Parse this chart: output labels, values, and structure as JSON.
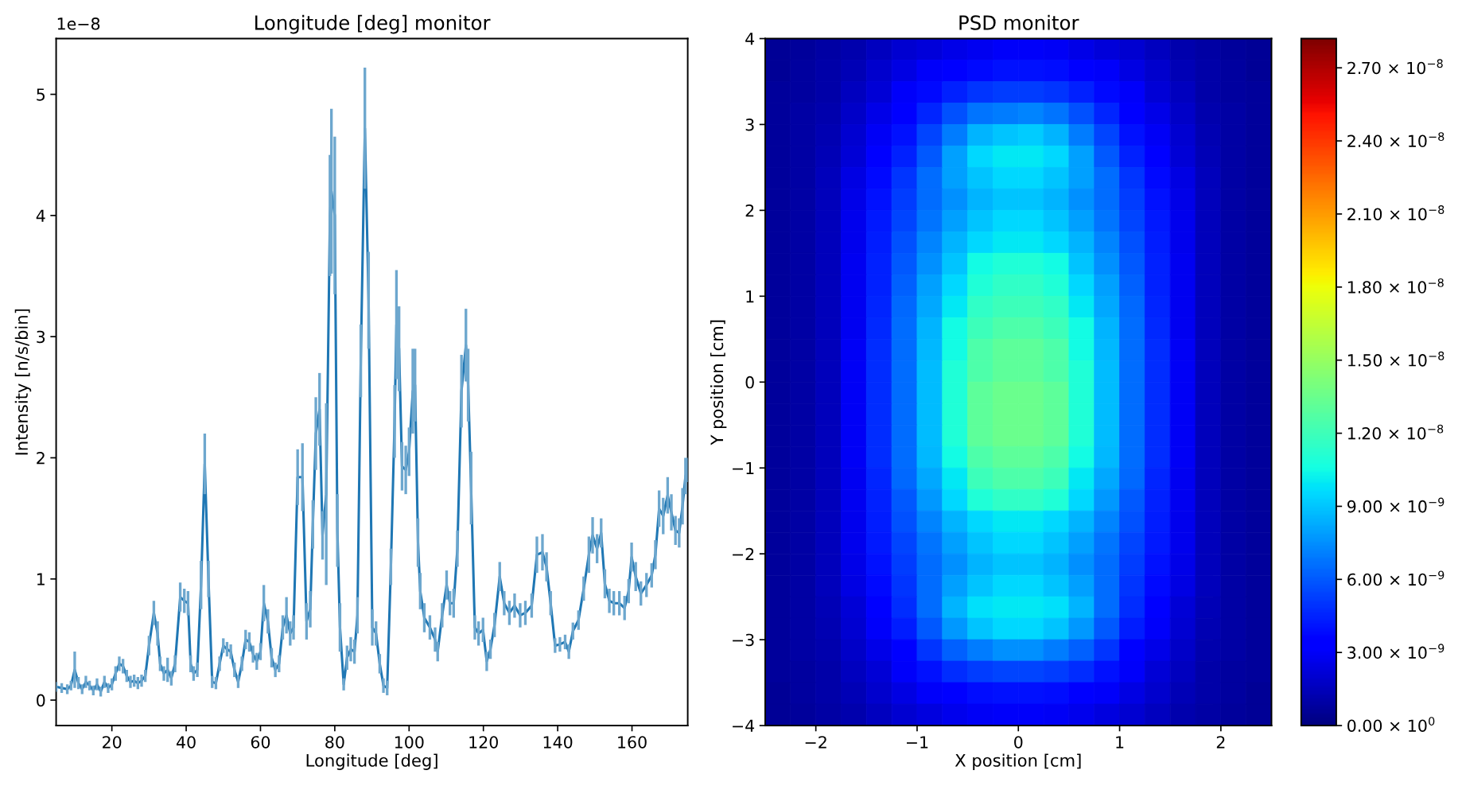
{
  "chart_data": [
    {
      "type": "line",
      "title": "Longitude [deg] monitor",
      "xlabel": "Longitude [deg]",
      "ylabel": "Intensity [n/s/bin]",
      "annotations": [
        "1e−8"
      ],
      "x": [
        5,
        6.5,
        8,
        9,
        10,
        11,
        12,
        13,
        14,
        15,
        16,
        17,
        18,
        19,
        20,
        21,
        22,
        23,
        24,
        25,
        26,
        27,
        28,
        29,
        30,
        31.3,
        32.3,
        33,
        34,
        35,
        36,
        37,
        38.4,
        39.5,
        40.5,
        41.2,
        42,
        43,
        44,
        45,
        46,
        47,
        48,
        49,
        50,
        51,
        52,
        53,
        54,
        55,
        56,
        57,
        58,
        59,
        60,
        60.9,
        62,
        63,
        64,
        65,
        66,
        67,
        68,
        68.9,
        70,
        71.3,
        72.4,
        73.4,
        74.1,
        74.9,
        75.9,
        76.7,
        77.7,
        78.7,
        79.1,
        80,
        80.7,
        81.4,
        82.4,
        83.3,
        84.3,
        85.3,
        86.1,
        87,
        88.1,
        89.1,
        90.1,
        91.1,
        92.1,
        93.1,
        94.1,
        95.1,
        96.1,
        96.6,
        97.3,
        98.1,
        99.1,
        100,
        101,
        101.6,
        102.4,
        103,
        104.1,
        105.6,
        107,
        107.7,
        108.9,
        110.1,
        111,
        112,
        113,
        114.1,
        115.3,
        115.9,
        116.7,
        117.7,
        118.7,
        119.9,
        120.9,
        121.9,
        123,
        124.4,
        125.6,
        127,
        128.4,
        129.9,
        131.3,
        133,
        134.4,
        135.9,
        137,
        138.1,
        139.3,
        140.6,
        142,
        143,
        144.1,
        145.6,
        147,
        148.4,
        149.4,
        150.6,
        151.7,
        152.7,
        153.9,
        155.1,
        156.6,
        158,
        159.1,
        159.9,
        161,
        162.4,
        163.9,
        165.3,
        166.3,
        167.3,
        168.4,
        169.6,
        170.6,
        171.7,
        172.7,
        173.6,
        174.4,
        175
      ],
      "series": [
        {
          "color": "#1f77b4",
          "values": [
            0.11,
            0.1,
            0.09,
            0.12,
            0.25,
            0.14,
            0.09,
            0.15,
            0.12,
            0.08,
            0.13,
            0.07,
            0.15,
            0.1,
            0.13,
            0.22,
            0.3,
            0.28,
            0.2,
            0.15,
            0.16,
            0.14,
            0.16,
            0.2,
            0.45,
            0.72,
            0.55,
            0.3,
            0.22,
            0.25,
            0.18,
            0.3,
            0.85,
            0.82,
            0.8,
            0.3,
            0.22,
            0.25,
            0.95,
            1.95,
            1.0,
            0.15,
            0.14,
            0.3,
            0.45,
            0.42,
            0.4,
            0.25,
            0.15,
            0.3,
            0.5,
            0.48,
            0.38,
            0.32,
            0.4,
            0.8,
            0.65,
            0.35,
            0.25,
            0.3,
            0.6,
            0.7,
            0.55,
            0.6,
            1.84,
            1.84,
            0.65,
            0.75,
            1.45,
            2.2,
            2.4,
            1.36,
            1.7,
            4.0,
            4.2,
            4.0,
            1.4,
            0.6,
            0.13,
            0.35,
            0.42,
            0.4,
            0.7,
            2.8,
            4.72,
            3.3,
            0.6,
            0.55,
            0.3,
            0.12,
            0.1,
            1.1,
            2.3,
            3.1,
            2.9,
            1.93,
            1.9,
            2.05,
            2.55,
            2.6,
            1.3,
            0.9,
            0.68,
            0.6,
            0.5,
            0.4,
            0.7,
            0.95,
            0.8,
            0.8,
            1.25,
            2.55,
            2.93,
            2.6,
            1.75,
            0.6,
            0.55,
            0.58,
            0.32,
            0.42,
            0.62,
            1.02,
            0.8,
            0.72,
            0.78,
            0.7,
            0.72,
            0.78,
            1.2,
            1.22,
            1.1,
            0.8,
            0.45,
            0.46,
            0.48,
            0.4,
            0.57,
            0.66,
            0.92,
            1.2,
            1.36,
            1.25,
            1.38,
            0.96,
            0.82,
            0.8,
            0.8,
            0.76,
            0.9,
            1.18,
            1.02,
            0.88,
            0.95,
            1.03,
            1.2,
            1.58,
            1.52,
            1.69,
            1.55,
            1.4,
            1.38,
            1.6,
            1.85,
            1.9
          ],
          "errors": [
            0.04,
            0.04,
            0.04,
            0.04,
            0.15,
            0.05,
            0.04,
            0.05,
            0.04,
            0.04,
            0.05,
            0.04,
            0.05,
            0.04,
            0.05,
            0.06,
            0.06,
            0.06,
            0.05,
            0.05,
            0.05,
            0.05,
            0.05,
            0.05,
            0.08,
            0.1,
            0.1,
            0.06,
            0.06,
            0.1,
            0.06,
            0.07,
            0.12,
            0.1,
            0.1,
            0.07,
            0.06,
            0.06,
            0.2,
            0.25,
            0.15,
            0.05,
            0.05,
            0.06,
            0.06,
            0.06,
            0.06,
            0.06,
            0.05,
            0.06,
            0.08,
            0.08,
            0.07,
            0.07,
            0.07,
            0.15,
            0.1,
            0.08,
            0.06,
            0.07,
            0.1,
            0.15,
            0.1,
            0.1,
            0.23,
            0.28,
            0.15,
            0.15,
            0.2,
            0.3,
            0.3,
            0.2,
            0.75,
            0.5,
            0.68,
            0.65,
            0.3,
            0.2,
            0.05,
            0.1,
            0.1,
            0.1,
            0.15,
            0.3,
            0.5,
            0.4,
            0.15,
            0.1,
            0.08,
            0.06,
            0.06,
            0.15,
            0.3,
            0.45,
            0.35,
            0.2,
            0.2,
            0.2,
            0.35,
            0.3,
            0.2,
            0.15,
            0.12,
            0.1,
            0.1,
            0.08,
            0.1,
            0.12,
            0.1,
            0.12,
            0.15,
            0.3,
            0.3,
            0.3,
            0.3,
            0.1,
            0.1,
            0.1,
            0.08,
            0.08,
            0.1,
            0.12,
            0.1,
            0.1,
            0.1,
            0.1,
            0.1,
            0.1,
            0.15,
            0.15,
            0.12,
            0.1,
            0.06,
            0.06,
            0.06,
            0.06,
            0.07,
            0.08,
            0.1,
            0.15,
            0.15,
            0.12,
            0.12,
            0.12,
            0.1,
            0.1,
            0.1,
            0.1,
            0.1,
            0.12,
            0.12,
            0.1,
            0.1,
            0.1,
            0.12,
            0.15,
            0.15,
            0.15,
            0.15,
            0.12,
            0.12,
            0.15,
            0.15,
            0.1
          ]
        }
      ],
      "xlim": [
        5,
        175
      ],
      "xticks": [
        20,
        40,
        60,
        80,
        100,
        120,
        140,
        160
      ],
      "ylim": [
        -0.21,
        5.46
      ],
      "yticks": [
        0,
        1,
        2,
        3,
        4,
        5
      ]
    },
    {
      "type": "heatmap",
      "title": "PSD monitor",
      "xlabel": "X position [cm]",
      "ylabel": "Y position [cm]",
      "x": [
        -2.375,
        -2.125,
        -1.875,
        -1.625,
        -1.375,
        -1.125,
        -0.875,
        -0.625,
        -0.375,
        -0.125,
        0.125,
        0.375,
        0.625,
        0.875,
        1.125,
        1.375,
        1.625,
        1.875,
        2.125,
        2.375
      ],
      "y": [
        3.875,
        3.625,
        3.375,
        3.125,
        2.875,
        2.625,
        2.375,
        2.125,
        1.875,
        1.625,
        1.375,
        1.125,
        0.875,
        0.625,
        0.375,
        0.125,
        -0.125,
        -0.375,
        -0.625,
        -0.875,
        -1.125,
        -1.375,
        -1.625,
        -1.875,
        -2.125,
        -2.375,
        -2.625,
        -2.875,
        -3.125,
        -3.375,
        -3.625,
        -3.875
      ],
      "cells": [
        [
          6e-10,
          7e-10,
          9e-10,
          1.2e-09,
          1.6e-09,
          2e-09,
          2.3e-09,
          2.6e-09,
          2.8e-09,
          3e-09,
          3e-09,
          2.9e-09,
          2.6e-09,
          2.3e-09,
          2e-09,
          1.6e-09,
          1.2e-09,
          9e-10,
          7e-10,
          6e-10
        ],
        [
          6e-10,
          8e-10,
          1e-09,
          1.4e-09,
          1.9e-09,
          2.5e-09,
          3e-09,
          3.5e-09,
          3.8e-09,
          4e-09,
          4e-09,
          3.9e-09,
          3.5e-09,
          3e-09,
          2.5e-09,
          1.9e-09,
          1.4e-09,
          1e-09,
          8e-10,
          6e-10
        ],
        [
          7e-10,
          8e-10,
          1.1e-09,
          1.6e-09,
          2.2e-09,
          3e-09,
          3.8e-09,
          4.5e-09,
          5e-09,
          5.2e-09,
          5.2e-09,
          5e-09,
          4.5e-09,
          3.8e-09,
          3e-09,
          2.2e-09,
          1.6e-09,
          1.1e-09,
          8e-10,
          7e-10
        ],
        [
          7e-10,
          9e-10,
          1.2e-09,
          1.8e-09,
          2.6e-09,
          3.5e-09,
          4.6e-09,
          5.8e-09,
          6.8e-09,
          7e-09,
          7.2e-09,
          6.8e-09,
          5.8e-09,
          4.6e-09,
          3.5e-09,
          2.6e-09,
          1.8e-09,
          1.2e-09,
          9e-10,
          7e-10
        ],
        [
          7e-10,
          9e-10,
          1.3e-09,
          2e-09,
          2.9e-09,
          4e-09,
          5.5e-09,
          7e-09,
          8.5e-09,
          9e-09,
          9.2e-09,
          8.5e-09,
          7e-09,
          5.5e-09,
          4e-09,
          2.9e-09,
          2e-09,
          1.3e-09,
          9e-10,
          7e-10
        ],
        [
          7e-10,
          9e-10,
          1.4e-09,
          2.2e-09,
          3.2e-09,
          4.5e-09,
          6e-09,
          8e-09,
          9.5e-09,
          1e-08,
          1e-08,
          9.5e-09,
          8e-09,
          6e-09,
          4.5e-09,
          3.2e-09,
          2.2e-09,
          1.4e-09,
          9e-10,
          7e-10
        ],
        [
          7e-10,
          9e-10,
          1.5e-09,
          2.5e-09,
          3.8e-09,
          5e-09,
          6.5e-09,
          8e-09,
          9e-09,
          9.5e-09,
          9.5e-09,
          9e-09,
          8e-09,
          6.5e-09,
          5e-09,
          3.8e-09,
          2.5e-09,
          1.5e-09,
          9e-10,
          7e-10
        ],
        [
          7e-10,
          9e-10,
          1.5e-09,
          2.6e-09,
          4e-09,
          5.2e-09,
          6.5e-09,
          7.5e-09,
          8.5e-09,
          9e-09,
          9e-09,
          8.5e-09,
          7.5e-09,
          6.5e-09,
          5.2e-09,
          4e-09,
          2.6e-09,
          1.5e-09,
          9e-10,
          7e-10
        ],
        [
          7e-10,
          9e-10,
          1.5e-09,
          2.7e-09,
          4.2e-09,
          5.5e-09,
          6.8e-09,
          8e-09,
          9e-09,
          9.5e-09,
          9.5e-09,
          9e-09,
          8e-09,
          6.8e-09,
          5.5e-09,
          4.2e-09,
          2.7e-09,
          1.5e-09,
          9e-10,
          7e-10
        ],
        [
          7e-10,
          9e-10,
          1.5e-09,
          2.7e-09,
          4.3e-09,
          5.8e-09,
          7.2e-09,
          8.5e-09,
          9.5e-09,
          1e-08,
          1e-08,
          9.5e-09,
          8.5e-09,
          7.2e-09,
          5.8e-09,
          4.3e-09,
          2.7e-09,
          1.5e-09,
          9e-10,
          7e-10
        ],
        [
          7e-10,
          9e-10,
          1.5e-09,
          2.8e-09,
          4.5e-09,
          6e-09,
          7.5e-09,
          9e-09,
          1.05e-08,
          1.1e-08,
          1.1e-08,
          1.05e-08,
          9e-09,
          7.5e-09,
          6e-09,
          4.5e-09,
          2.8e-09,
          1.5e-09,
          9e-10,
          7e-10
        ],
        [
          7e-10,
          9e-10,
          1.5e-09,
          2.8e-09,
          4.5e-09,
          6.2e-09,
          8e-09,
          9.5e-09,
          1.1e-08,
          1.15e-08,
          1.15e-08,
          1.1e-08,
          9.5e-09,
          8e-09,
          6.2e-09,
          4.5e-09,
          2.8e-09,
          1.5e-09,
          9e-10,
          7e-10
        ],
        [
          7e-10,
          9e-10,
          1.5e-09,
          2.8e-09,
          4.6e-09,
          6.4e-09,
          8.2e-09,
          1e-08,
          1.15e-08,
          1.2e-08,
          1.2e-08,
          1.15e-08,
          1e-08,
          8.2e-09,
          6.4e-09,
          4.6e-09,
          2.8e-09,
          1.5e-09,
          9e-10,
          7e-10
        ],
        [
          7e-10,
          9e-10,
          1.5e-09,
          2.8e-09,
          4.7e-09,
          6.5e-09,
          8.5e-09,
          1.05e-08,
          1.2e-08,
          1.25e-08,
          1.25e-08,
          1.2e-08,
          1.05e-08,
          8.5e-09,
          6.5e-09,
          4.7e-09,
          2.8e-09,
          1.5e-09,
          9e-10,
          7e-10
        ],
        [
          7e-10,
          9e-10,
          1.5e-09,
          2.9e-09,
          4.8e-09,
          6.6e-09,
          8.6e-09,
          1.05e-08,
          1.25e-08,
          1.3e-08,
          1.3e-08,
          1.25e-08,
          1.05e-08,
          8.6e-09,
          6.6e-09,
          4.8e-09,
          2.9e-09,
          1.5e-09,
          9e-10,
          7e-10
        ],
        [
          7e-10,
          9e-10,
          1.5e-09,
          2.9e-09,
          4.8e-09,
          6.6e-09,
          8.8e-09,
          1.1e-08,
          1.25e-08,
          1.3e-08,
          1.3e-08,
          1.25e-08,
          1.1e-08,
          8.8e-09,
          6.6e-09,
          4.8e-09,
          2.9e-09,
          1.5e-09,
          9e-10,
          7e-10
        ],
        [
          7e-10,
          9e-10,
          1.5e-09,
          2.9e-09,
          4.8e-09,
          6.6e-09,
          8.8e-09,
          1.1e-08,
          1.3e-08,
          1.35e-08,
          1.35e-08,
          1.3e-08,
          1.1e-08,
          8.8e-09,
          6.6e-09,
          4.8e-09,
          2.9e-09,
          1.5e-09,
          9e-10,
          7e-10
        ],
        [
          7e-10,
          9e-10,
          1.5e-09,
          2.9e-09,
          4.8e-09,
          6.6e-09,
          8.8e-09,
          1.1e-08,
          1.3e-08,
          1.35e-08,
          1.35e-08,
          1.3e-08,
          1.1e-08,
          8.8e-09,
          6.6e-09,
          4.8e-09,
          2.9e-09,
          1.5e-09,
          9e-10,
          7e-10
        ],
        [
          7e-10,
          9e-10,
          1.5e-09,
          2.9e-09,
          4.8e-09,
          6.6e-09,
          8.8e-09,
          1.1e-08,
          1.3e-08,
          1.35e-08,
          1.35e-08,
          1.3e-08,
          1.1e-08,
          8.8e-09,
          6.6e-09,
          4.8e-09,
          2.9e-09,
          1.5e-09,
          9e-10,
          7e-10
        ],
        [
          7e-10,
          9e-10,
          1.5e-09,
          2.9e-09,
          4.8e-09,
          6.6e-09,
          8.6e-09,
          1.05e-08,
          1.25e-08,
          1.3e-08,
          1.3e-08,
          1.25e-08,
          1.05e-08,
          8.6e-09,
          6.6e-09,
          4.8e-09,
          2.9e-09,
          1.5e-09,
          9e-10,
          7e-10
        ],
        [
          7e-10,
          9e-10,
          1.5e-09,
          2.8e-09,
          4.6e-09,
          6.4e-09,
          8.2e-09,
          1e-08,
          1.2e-08,
          1.25e-08,
          1.25e-08,
          1.2e-08,
          1e-08,
          8.2e-09,
          6.4e-09,
          4.6e-09,
          2.8e-09,
          1.5e-09,
          9e-10,
          7e-10
        ],
        [
          7e-10,
          9e-10,
          1.5e-09,
          2.8e-09,
          4.5e-09,
          6e-09,
          7.8e-09,
          9.5e-09,
          1.1e-08,
          1.15e-08,
          1.15e-08,
          1.1e-08,
          9.5e-09,
          7.8e-09,
          6e-09,
          4.5e-09,
          2.8e-09,
          1.5e-09,
          9e-10,
          7e-10
        ],
        [
          7e-10,
          9e-10,
          1.5e-09,
          2.7e-09,
          4.3e-09,
          5.8e-09,
          7.2e-09,
          8.5e-09,
          9.5e-09,
          1e-08,
          1e-08,
          9.5e-09,
          8.5e-09,
          7.2e-09,
          5.8e-09,
          4.3e-09,
          2.7e-09,
          1.5e-09,
          9e-10,
          7e-10
        ],
        [
          7e-10,
          9e-10,
          1.5e-09,
          2.7e-09,
          4.2e-09,
          5.5e-09,
          6.8e-09,
          8e-09,
          9e-09,
          9.5e-09,
          9.5e-09,
          9e-09,
          8e-09,
          6.8e-09,
          5.5e-09,
          4.2e-09,
          2.7e-09,
          1.5e-09,
          9e-10,
          7e-10
        ],
        [
          7e-10,
          9e-10,
          1.5e-09,
          2.6e-09,
          4e-09,
          5.2e-09,
          6.5e-09,
          7.5e-09,
          8.5e-09,
          9e-09,
          9e-09,
          8.5e-09,
          7.5e-09,
          6.5e-09,
          5.2e-09,
          4e-09,
          2.6e-09,
          1.5e-09,
          9e-10,
          7e-10
        ],
        [
          7e-10,
          9e-10,
          1.5e-09,
          2.5e-09,
          3.8e-09,
          5e-09,
          6.5e-09,
          8e-09,
          9e-09,
          9.5e-09,
          9.5e-09,
          9e-09,
          8e-09,
          6.5e-09,
          5e-09,
          3.8e-09,
          2.5e-09,
          1.5e-09,
          9e-10,
          7e-10
        ],
        [
          7e-10,
          9e-10,
          1.4e-09,
          2.2e-09,
          3.4e-09,
          4.8e-09,
          6.5e-09,
          8.5e-09,
          9.8e-09,
          1e-08,
          1e-08,
          9.8e-09,
          8.5e-09,
          6.5e-09,
          4.8e-09,
          3.4e-09,
          2.2e-09,
          1.4e-09,
          9e-10,
          7e-10
        ],
        [
          7e-10,
          9e-10,
          1.3e-09,
          2e-09,
          3e-09,
          4.3e-09,
          6e-09,
          7.8e-09,
          9e-09,
          9.5e-09,
          9.5e-09,
          9e-09,
          7.8e-09,
          6e-09,
          4.3e-09,
          3e-09,
          2e-09,
          1.3e-09,
          9e-10,
          7e-10
        ],
        [
          7e-10,
          9e-10,
          1.2e-09,
          1.8e-09,
          2.6e-09,
          3.6e-09,
          5e-09,
          6.2e-09,
          7e-09,
          7.5e-09,
          7.5e-09,
          7e-09,
          6.2e-09,
          5e-09,
          3.6e-09,
          2.6e-09,
          1.8e-09,
          1.2e-09,
          9e-10,
          7e-10
        ],
        [
          7e-10,
          8e-10,
          1.1e-09,
          1.6e-09,
          2.2e-09,
          3e-09,
          4e-09,
          4.8e-09,
          5.2e-09,
          5.5e-09,
          5.5e-09,
          5.2e-09,
          4.8e-09,
          4e-09,
          3e-09,
          2.2e-09,
          1.6e-09,
          1.1e-09,
          8e-10,
          7e-10
        ],
        [
          6e-10,
          8e-10,
          1e-09,
          1.4e-09,
          1.9e-09,
          2.5e-09,
          3e-09,
          3.6e-09,
          3.9e-09,
          4e-09,
          4e-09,
          3.9e-09,
          3.6e-09,
          3e-09,
          2.5e-09,
          1.9e-09,
          1.4e-09,
          1e-09,
          8e-10,
          6e-10
        ],
        [
          6e-10,
          7e-10,
          9e-10,
          1.2e-09,
          1.6e-09,
          2e-09,
          2.4e-09,
          2.7e-09,
          2.9e-09,
          3e-09,
          3e-09,
          2.9e-09,
          2.7e-09,
          2.4e-09,
          2e-09,
          1.6e-09,
          1.2e-09,
          9e-10,
          7e-10,
          6e-10
        ]
      ],
      "clim": [
        0,
        2.82e-08
      ],
      "cticks": [
        {
          "value": 0,
          "label": "0.00 × 10$^{0}$"
        },
        {
          "value": 3e-09,
          "label": "3.00 × 10$^{−9}$"
        },
        {
          "value": 6e-09,
          "label": "6.00 × 10$^{−9}$"
        },
        {
          "value": 9e-09,
          "label": "9.00 × 10$^{−9}$"
        },
        {
          "value": 1.2e-08,
          "label": "1.20 × 10$^{−8}$"
        },
        {
          "value": 1.5e-08,
          "label": "1.50 × 10$^{−8}$"
        },
        {
          "value": 1.8e-08,
          "label": "1.80 × 10$^{−8}$"
        },
        {
          "value": 2.1e-08,
          "label": "2.10 × 10$^{−8}$"
        },
        {
          "value": 2.4e-08,
          "label": "2.40 × 10$^{−8}$"
        },
        {
          "value": 2.7e-08,
          "label": "2.70 × 10$^{−8}$"
        }
      ],
      "xlim": [
        -2.5,
        2.5
      ],
      "xticks": [
        {
          "value": -2,
          "label": "−2"
        },
        {
          "value": -1,
          "label": "−1"
        },
        0,
        1,
        2
      ],
      "ylim": [
        -4,
        4
      ],
      "yticks": [
        {
          "value": -4,
          "label": "−4"
        },
        {
          "value": -3,
          "label": "−3"
        },
        {
          "value": -2,
          "label": "−2"
        },
        {
          "value": -1,
          "label": "−1"
        },
        0,
        1,
        2,
        3,
        4
      ]
    }
  ]
}
